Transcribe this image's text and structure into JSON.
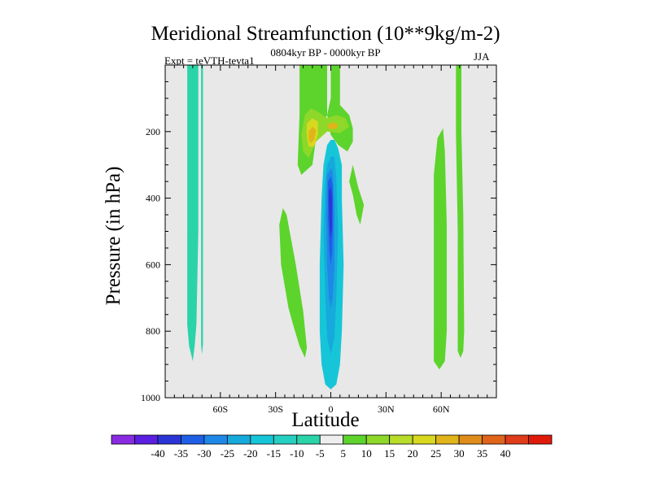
{
  "chart_data": {
    "type": "heatmap",
    "title": "Meridional Streamfunction (10**9kg/m-2)",
    "left_string": "Expt = teVTH-tevta1",
    "center_string": "0804kyr BP - 0000kyr BP",
    "right_string": "JJA",
    "xlabel": "Latitude",
    "ylabel": "Pressure (in hPa)",
    "x_range": [
      -90,
      90
    ],
    "y_range": [
      1000,
      0
    ],
    "x_ticks": [
      {
        "value": -60,
        "label": "60S"
      },
      {
        "value": -30,
        "label": "30S"
      },
      {
        "value": 0,
        "label": "0"
      },
      {
        "value": 30,
        "label": "30N"
      },
      {
        "value": 60,
        "label": "60N"
      }
    ],
    "y_ticks": [
      {
        "value": 200,
        "label": "200"
      },
      {
        "value": 400,
        "label": "400"
      },
      {
        "value": 600,
        "label": "600"
      },
      {
        "value": 800,
        "label": "800"
      },
      {
        "value": 1000,
        "label": "1000"
      }
    ],
    "background_color": "#e8e8e8",
    "colorbar": {
      "colors": [
        "#8a2be2",
        "#5a1fe0",
        "#2b35d6",
        "#1e5fe6",
        "#1e88e8",
        "#16aadc",
        "#16c6d8",
        "#26d0c0",
        "#2ad4a8",
        "#eeeeee",
        "#5cd42c",
        "#8ed82a",
        "#b8dc2a",
        "#d8d81e",
        "#e0b41a",
        "#e08c1a",
        "#e0641a",
        "#e03c1a",
        "#e01a0a"
      ],
      "labels": [
        "-40",
        "-35",
        "-30",
        "-25",
        "-20",
        "-15",
        "-10",
        "-5",
        "5",
        "10",
        "15",
        "20",
        "25",
        "30",
        "35",
        "40"
      ]
    },
    "contours": [
      {
        "color": "#2ad4a8",
        "points": [
          [
            -78,
            0
          ],
          [
            -72,
            0
          ],
          [
            -72,
            500
          ],
          [
            -73,
            780
          ],
          [
            -74,
            845
          ],
          [
            -75,
            890
          ],
          [
            -77,
            845
          ],
          [
            -78,
            780
          ]
        ]
      },
      {
        "color": "#2ad4a8",
        "points": [
          [
            -70.5,
            0
          ],
          [
            -69.5,
            0
          ],
          [
            -69.5,
            840
          ],
          [
            -70,
            870
          ],
          [
            -70.5,
            840
          ]
        ]
      },
      {
        "color": "#5cd42c",
        "points": [
          [
            -26,
            430
          ],
          [
            -24,
            450
          ],
          [
            -19,
            600
          ],
          [
            -15,
            740
          ],
          [
            -13,
            850
          ],
          [
            -14,
            880
          ],
          [
            -17,
            845
          ],
          [
            -20,
            790
          ],
          [
            -23,
            730
          ],
          [
            -27,
            600
          ],
          [
            -28,
            480
          ]
        ]
      },
      {
        "color": "#5cd42c",
        "points": [
          [
            -17,
            0
          ],
          [
            -2,
            0
          ],
          [
            -2,
            150
          ],
          [
            -8,
            220
          ],
          [
            -10,
            300
          ],
          [
            -16,
            330
          ],
          [
            -18,
            300
          ],
          [
            -17,
            150
          ]
        ]
      },
      {
        "color": "#5cd42c",
        "points": [
          [
            0,
            0
          ],
          [
            5,
            0
          ],
          [
            5,
            120
          ],
          [
            10,
            150
          ],
          [
            12,
            190
          ],
          [
            12,
            230
          ],
          [
            9,
            260
          ],
          [
            4,
            240
          ],
          [
            0,
            210
          ],
          [
            -2,
            150
          ],
          [
            0,
            100
          ]
        ]
      },
      {
        "color": "#8ed82a",
        "points": [
          [
            -14,
            150
          ],
          [
            -11,
            130
          ],
          [
            -7,
            140
          ],
          [
            -2,
            160
          ],
          [
            3,
            150
          ],
          [
            8,
            160
          ],
          [
            10,
            185
          ],
          [
            5,
            205
          ],
          [
            -2,
            200
          ],
          [
            -8,
            230
          ],
          [
            -12,
            280
          ],
          [
            -15,
            260
          ],
          [
            -16,
            210
          ]
        ]
      },
      {
        "color": "#d8d81e",
        "points": [
          [
            -13,
            175
          ],
          [
            -10,
            160
          ],
          [
            -7,
            170
          ],
          [
            -7,
            210
          ],
          [
            -9,
            245
          ],
          [
            -12,
            245
          ],
          [
            -13,
            215
          ]
        ]
      },
      {
        "color": "#e0b41a",
        "points": [
          [
            -12,
            200
          ],
          [
            -10,
            185
          ],
          [
            -8,
            195
          ],
          [
            -9,
            225
          ],
          [
            -11,
            235
          ],
          [
            -12,
            222
          ]
        ]
      },
      {
        "color": "#e0b41a",
        "points": [
          [
            -2,
            180
          ],
          [
            1,
            172
          ],
          [
            4,
            178
          ],
          [
            3,
            192
          ],
          [
            -1,
            192
          ]
        ]
      },
      {
        "color": "#5cd42c",
        "points": [
          [
            12,
            300
          ],
          [
            15,
            370
          ],
          [
            18,
            420
          ],
          [
            16,
            480
          ],
          [
            14,
            450
          ],
          [
            12,
            390
          ],
          [
            10,
            350
          ]
        ]
      },
      {
        "color": "#16c6d8",
        "points": [
          [
            -2,
            240
          ],
          [
            0,
            225
          ],
          [
            2,
            225
          ],
          [
            4,
            250
          ],
          [
            6,
            300
          ],
          [
            6,
            400
          ],
          [
            7,
            600
          ],
          [
            6,
            800
          ],
          [
            5,
            900
          ],
          [
            3,
            960
          ],
          [
            0,
            975
          ],
          [
            -3,
            960
          ],
          [
            -5,
            900
          ],
          [
            -6,
            800
          ],
          [
            -6,
            600
          ],
          [
            -5,
            400
          ],
          [
            -4,
            300
          ]
        ]
      },
      {
        "color": "#16aadc",
        "points": [
          [
            -2,
            300
          ],
          [
            0,
            275
          ],
          [
            2,
            275
          ],
          [
            3,
            340
          ],
          [
            4,
            500
          ],
          [
            3,
            700
          ],
          [
            2,
            820
          ],
          [
            0,
            870
          ],
          [
            -2,
            820
          ],
          [
            -3,
            700
          ],
          [
            -4,
            500
          ],
          [
            -3,
            350
          ]
        ]
      },
      {
        "color": "#1e88e8",
        "points": [
          [
            -2,
            330
          ],
          [
            0,
            310
          ],
          [
            1,
            320
          ],
          [
            2,
            420
          ],
          [
            2,
            600
          ],
          [
            1,
            700
          ],
          [
            0,
            730
          ],
          [
            -1,
            700
          ],
          [
            -2,
            600
          ],
          [
            -2.5,
            450
          ]
        ]
      },
      {
        "color": "#1e5fe6",
        "points": [
          [
            -1.5,
            350
          ],
          [
            0,
            335
          ],
          [
            1,
            360
          ],
          [
            1.2,
            460
          ],
          [
            0.8,
            560
          ],
          [
            0,
            600
          ],
          [
            -0.8,
            560
          ],
          [
            -1.5,
            460
          ]
        ]
      },
      {
        "color": "#2b35d6",
        "points": [
          [
            -1,
            380
          ],
          [
            0,
            365
          ],
          [
            0.7,
            400
          ],
          [
            0.6,
            490
          ],
          [
            0,
            520
          ],
          [
            -0.6,
            490
          ],
          [
            -1,
            420
          ]
        ]
      },
      {
        "color": "#5cd42c",
        "points": [
          [
            56,
            330
          ],
          [
            58,
            220
          ],
          [
            61,
            190
          ],
          [
            62,
            260
          ],
          [
            63,
            480
          ],
          [
            63,
            800
          ],
          [
            62,
            890
          ],
          [
            59,
            915
          ],
          [
            56,
            890
          ],
          [
            56,
            600
          ]
        ]
      },
      {
        "color": "#5cd42c",
        "points": [
          [
            68,
            0
          ],
          [
            71,
            0
          ],
          [
            71,
            200
          ],
          [
            72,
            450
          ],
          [
            72.5,
            800
          ],
          [
            72,
            860
          ],
          [
            70.5,
            880
          ],
          [
            69,
            860
          ],
          [
            69,
            500
          ],
          [
            68,
            200
          ]
        ]
      }
    ]
  }
}
